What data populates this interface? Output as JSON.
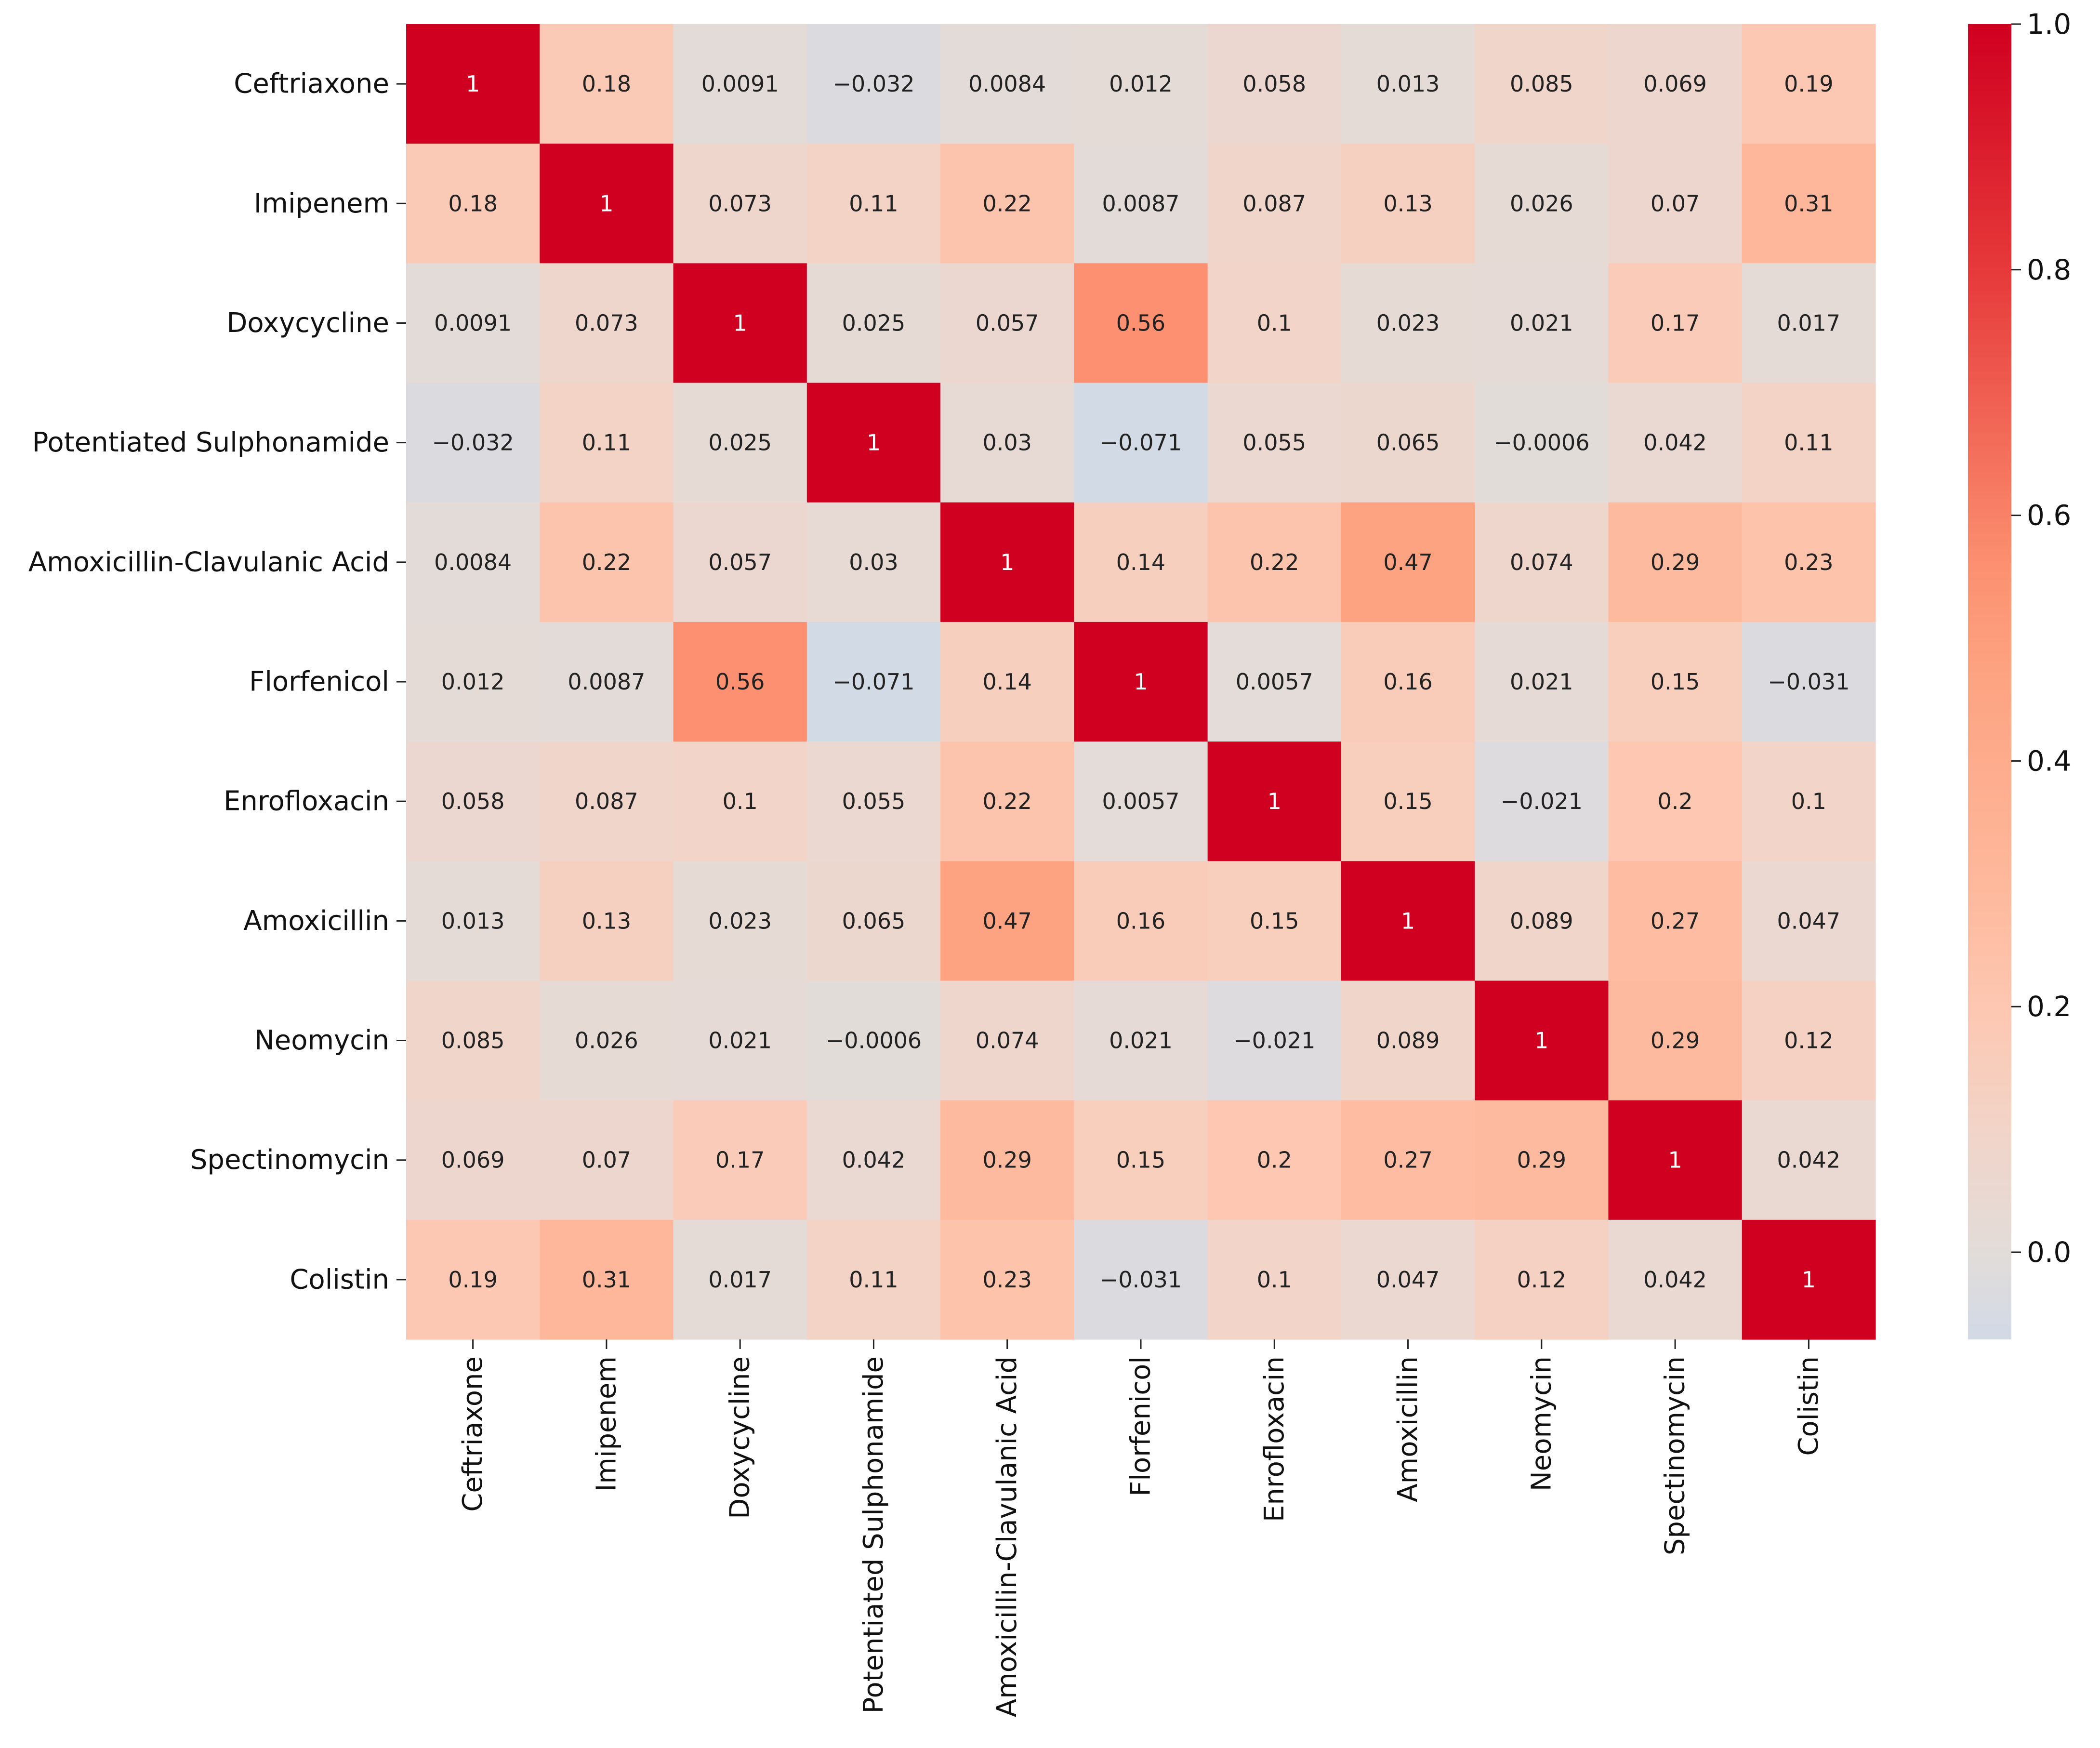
{
  "chart_data": {
    "type": "heatmap",
    "title": "",
    "xlabel": "",
    "ylabel": "",
    "row_labels": [
      "Ceftriaxone",
      "Imipenem",
      "Doxycycline",
      "Potentiated Sulphonamide",
      "Amoxicillin-Clavulanic Acid",
      "Florfenicol",
      "Enrofloxacin",
      "Amoxicillin",
      "Neomycin",
      "Spectinomycin",
      "Colistin"
    ],
    "col_labels": [
      "Ceftriaxone",
      "Imipenem",
      "Doxycycline",
      "Potentiated  Sulphonamide",
      "Amoxicillin-Clavulanic Acid",
      "Florfenicol",
      "Enrofloxacin",
      "Amoxicillin",
      "Neomycin",
      "Spectinomycin",
      "Colistin"
    ],
    "values": [
      [
        1,
        0.18,
        0.0091,
        -0.032,
        0.0084,
        0.012,
        0.058,
        0.013,
        0.085,
        0.069,
        0.19
      ],
      [
        0.18,
        1,
        0.073,
        0.11,
        0.22,
        0.0087,
        0.087,
        0.13,
        0.026,
        0.07,
        0.31
      ],
      [
        0.0091,
        0.073,
        1,
        0.025,
        0.057,
        0.56,
        0.1,
        0.023,
        0.021,
        0.17,
        0.017
      ],
      [
        -0.032,
        0.11,
        0.025,
        1,
        0.03,
        -0.071,
        0.055,
        0.065,
        -0.0006,
        0.042,
        0.11
      ],
      [
        0.0084,
        0.22,
        0.057,
        0.03,
        1,
        0.14,
        0.22,
        0.47,
        0.074,
        0.29,
        0.23
      ],
      [
        0.012,
        0.0087,
        0.56,
        -0.071,
        0.14,
        1,
        0.0057,
        0.16,
        0.021,
        0.15,
        -0.031
      ],
      [
        0.058,
        0.087,
        0.1,
        0.055,
        0.22,
        0.0057,
        1,
        0.15,
        -0.021,
        0.2,
        0.1
      ],
      [
        0.013,
        0.13,
        0.023,
        0.065,
        0.47,
        0.16,
        0.15,
        1,
        0.089,
        0.27,
        0.047
      ],
      [
        0.085,
        0.026,
        0.021,
        -0.0006,
        0.074,
        0.021,
        -0.021,
        0.089,
        1,
        0.29,
        0.12
      ],
      [
        0.069,
        0.07,
        0.17,
        0.042,
        0.29,
        0.15,
        0.2,
        0.27,
        0.29,
        1,
        0.042
      ],
      [
        0.19,
        0.31,
        0.017,
        0.11,
        0.23,
        -0.031,
        0.1,
        0.047,
        0.12,
        0.042,
        1
      ]
    ],
    "value_labels": [
      [
        "1",
        "0.18",
        "0.0091",
        "−0.032",
        "0.0084",
        "0.012",
        "0.058",
        "0.013",
        "0.085",
        "0.069",
        "0.19"
      ],
      [
        "0.18",
        "1",
        "0.073",
        "0.11",
        "0.22",
        "0.0087",
        "0.087",
        "0.13",
        "0.026",
        "0.07",
        "0.31"
      ],
      [
        "0.0091",
        "0.073",
        "1",
        "0.025",
        "0.057",
        "0.56",
        "0.1",
        "0.023",
        "0.021",
        "0.17",
        "0.017"
      ],
      [
        "−0.032",
        "0.11",
        "0.025",
        "1",
        "0.03",
        "−0.071",
        "0.055",
        "0.065",
        "−0.0006",
        "0.042",
        "0.11"
      ],
      [
        "0.0084",
        "0.22",
        "0.057",
        "0.03",
        "1",
        "0.14",
        "0.22",
        "0.47",
        "0.074",
        "0.29",
        "0.23"
      ],
      [
        "0.012",
        "0.0087",
        "0.56",
        "−0.071",
        "0.14",
        "1",
        "0.0057",
        "0.16",
        "0.021",
        "0.15",
        "−0.031"
      ],
      [
        "0.058",
        "0.087",
        "0.1",
        "0.055",
        "0.22",
        "0.0057",
        "1",
        "0.15",
        "−0.021",
        "0.2",
        "0.1"
      ],
      [
        "0.013",
        "0.13",
        "0.023",
        "0.065",
        "0.47",
        "0.16",
        "0.15",
        "1",
        "0.089",
        "0.27",
        "0.047"
      ],
      [
        "0.085",
        "0.026",
        "0.021",
        "−0.0006",
        "0.074",
        "0.021",
        "−0.021",
        "0.089",
        "1",
        "0.29",
        "0.12"
      ],
      [
        "0.069",
        "0.07",
        "0.17",
        "0.042",
        "0.29",
        "0.15",
        "0.2",
        "0.27",
        "0.29",
        "1",
        "0.042"
      ],
      [
        "0.19",
        "0.31",
        "0.017",
        "0.11",
        "0.23",
        "−0.031",
        "0.1",
        "0.047",
        "0.12",
        "0.042",
        "1"
      ]
    ],
    "colorbar": {
      "range": [
        -0.071,
        1
      ],
      "ticks": [
        0.0,
        0.2,
        0.4,
        0.6,
        0.8,
        1.0
      ],
      "tick_labels": [
        "0.0",
        "0.2",
        "0.4",
        "0.6",
        "0.8",
        "1.0"
      ]
    },
    "colormap": "coolwarm-light-to-red",
    "colors": {
      "low": "#d6dee9",
      "mid": "#e2dcd9",
      "high": "#d00020",
      "text_dark": "#222222",
      "text_light": "#ffffff"
    }
  }
}
